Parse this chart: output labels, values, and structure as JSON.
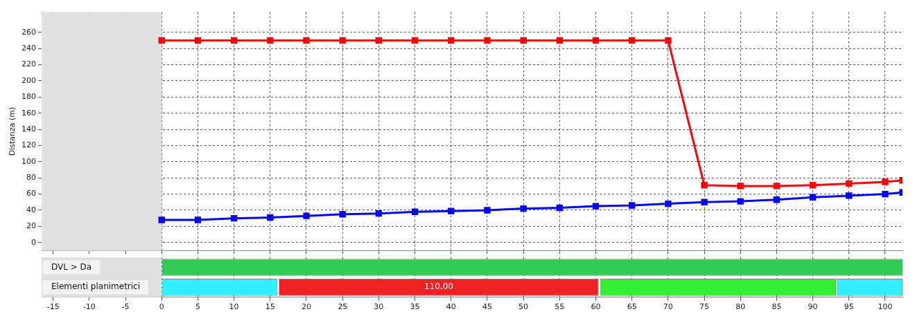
{
  "chart_data": [
    {
      "type": "line",
      "ylabel": "Distanza (m)",
      "xlim": [
        -16.6,
        102.4
      ],
      "xticks": [
        -15,
        -10,
        -5,
        0,
        5,
        10,
        15,
        20,
        25,
        30,
        35,
        40,
        45,
        50,
        55,
        60,
        65,
        70,
        75,
        80,
        85,
        90,
        95,
        100
      ],
      "ylim": [
        -10,
        285
      ],
      "yticks": [
        0,
        20,
        40,
        60,
        80,
        100,
        120,
        140,
        160,
        180,
        200,
        220,
        240,
        260
      ],
      "grid": true,
      "tick_labels": "y",
      "marker": "square",
      "line_style": "solid",
      "legend": false,
      "bands": [
        {
          "axis": "x",
          "from": -16.6,
          "to": 0,
          "color": "#e0e0e0"
        }
      ],
      "series": [
        {
          "color": "#ff0000",
          "x": [
            0,
            5,
            10,
            15,
            20,
            25,
            30,
            35,
            40,
            45,
            50,
            55,
            60,
            65,
            70,
            75,
            80,
            85,
            90,
            95,
            100,
            102.4
          ],
          "values": [
            250,
            250,
            250,
            250,
            250,
            250,
            250,
            250,
            250,
            250,
            250,
            250,
            250,
            250,
            250,
            71,
            70,
            70,
            71,
            73,
            75,
            77
          ]
        },
        {
          "color": "#0000ff",
          "x": [
            0,
            5,
            10,
            15,
            20,
            25,
            30,
            35,
            40,
            45,
            50,
            55,
            60,
            65,
            70,
            75,
            80,
            85,
            90,
            95,
            100,
            102.4
          ],
          "values": [
            28,
            28,
            30,
            31,
            33,
            35,
            36,
            38,
            39,
            40,
            42,
            43,
            45,
            46,
            48,
            50,
            51,
            53,
            56,
            58,
            60,
            62
          ]
        }
      ]
    },
    {
      "type": "bar",
      "orientation": "horizontal",
      "categories": [
        "DVL > Da",
        "Elementi planimetrici"
      ],
      "xlim": [
        -16.6,
        102.4
      ],
      "xticks": [
        -15,
        -10,
        -5,
        0,
        5,
        10,
        15,
        20,
        25,
        30,
        35,
        40,
        45,
        50,
        55,
        60,
        65,
        70,
        75,
        80,
        85,
        90,
        95,
        100
      ],
      "grid": "x",
      "legend": false,
      "annotations": [
        {
          "text": "110,00",
          "x": 38.3,
          "y": "Elementi planimetrici"
        }
      ],
      "bands": [
        {
          "axis": "x",
          "from": -16.6,
          "to": 0,
          "color": "#e0e0e0"
        }
      ],
      "series": [
        {
          "colors": [
            "#2ecc55",
            "#33eeff"
          ],
          "base": [
            0,
            0
          ],
          "values": [
            102.4,
            16
          ]
        },
        {
          "color": "#ee2222",
          "base": [
            null,
            16.2
          ],
          "values": [
            null,
            44.2
          ]
        },
        {
          "color": "#33ee33",
          "base": [
            null,
            60.6
          ],
          "values": [
            null,
            32.6
          ]
        },
        {
          "color": "#33eeff",
          "base": [
            null,
            93.3
          ],
          "values": [
            null,
            9.1
          ]
        }
      ]
    }
  ]
}
